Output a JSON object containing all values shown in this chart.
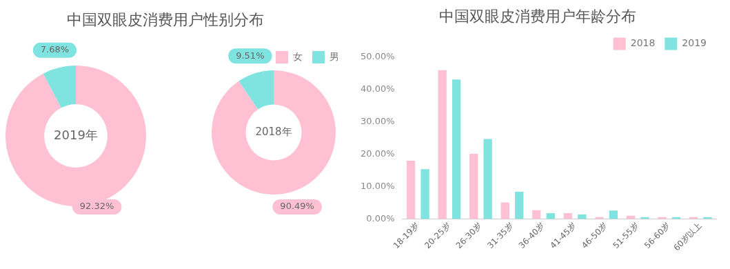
{
  "chart_data": [
    {
      "type": "donut",
      "title": "中国双眼皮消费用户性别分布",
      "categories": [
        "女",
        "男"
      ],
      "colors": [
        "#ffc0d3",
        "#7fe3df"
      ],
      "legend": "top right",
      "series": [
        {
          "name": "2019年",
          "values": [
            92.32,
            7.68
          ],
          "value_labels": [
            "92.32%",
            "7.68%"
          ]
        },
        {
          "name": "2018年",
          "values": [
            90.49,
            9.51
          ],
          "value_labels": [
            "90.49%",
            "9.51%"
          ]
        }
      ]
    },
    {
      "type": "bar",
      "title": "中国双眼皮消费用户年龄分布",
      "categories": [
        "18-19岁",
        "20-25岁",
        "26-30岁",
        "31-35岁",
        "36-40岁",
        "41-45岁",
        "46-50岁",
        "51-55岁",
        "56-60岁",
        "60岁以上"
      ],
      "series": [
        {
          "name": "2018",
          "color": "#ffc0d3",
          "values": [
            18.0,
            45.9,
            20.1,
            5.1,
            2.7,
            1.8,
            0.6,
            1.0,
            0.6,
            0.6
          ]
        },
        {
          "name": "2019",
          "color": "#7fe3df",
          "values": [
            15.4,
            43.0,
            24.7,
            8.4,
            1.8,
            1.4,
            2.6,
            0.6,
            0.6,
            0.6
          ]
        }
      ],
      "ylim": [
        0,
        50
      ],
      "yticks": [
        {
          "value": 0,
          "label": "0.00%"
        },
        {
          "value": 10,
          "label": "10.00%"
        },
        {
          "value": 20,
          "label": "20.00%"
        },
        {
          "value": 30,
          "label": "30.00%"
        },
        {
          "value": 40,
          "label": "40.00%"
        },
        {
          "value": 50,
          "label": "50.00%"
        }
      ],
      "legend": "top right",
      "grid": false
    }
  ]
}
